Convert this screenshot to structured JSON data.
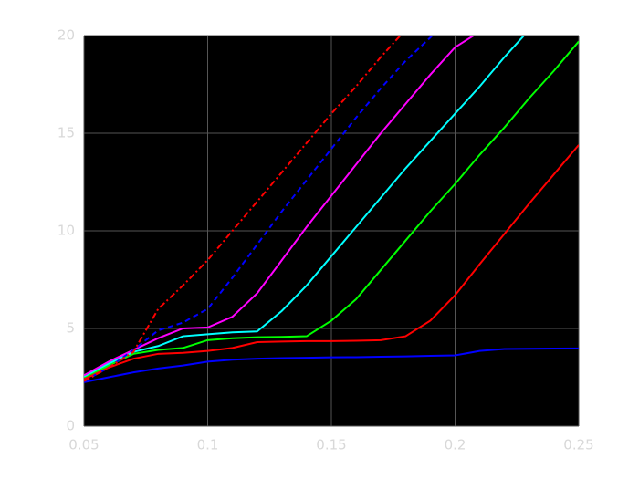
{
  "chart_data": {
    "type": "line",
    "x": [
      0.05,
      0.06,
      0.07,
      0.08,
      0.09,
      0.1,
      0.11,
      0.12,
      0.13,
      0.14,
      0.15,
      0.16,
      0.17,
      0.18,
      0.19,
      0.2,
      0.21,
      0.22,
      0.23,
      0.24,
      0.25
    ],
    "xlim": [
      0.05,
      0.25
    ],
    "xticks": [
      0.05,
      0.1,
      0.15,
      0.2,
      0.25
    ],
    "ylim": [
      0,
      20
    ],
    "yticks": [
      0,
      5,
      10,
      15,
      20
    ],
    "grid": true,
    "series": [
      {
        "color": "#0000ff",
        "dash": "solid",
        "values": [
          2.25,
          2.5,
          2.75,
          2.95,
          3.1,
          3.3,
          3.4,
          3.45,
          3.48,
          3.5,
          3.52,
          3.53,
          3.55,
          3.57,
          3.6,
          3.62,
          3.85,
          3.95,
          3.96,
          3.97,
          3.98
        ]
      },
      {
        "color": "#ff0000",
        "dash": "solid",
        "values": [
          2.4,
          3.0,
          3.45,
          3.7,
          3.75,
          3.85,
          4.0,
          4.3,
          4.33,
          4.35,
          4.35,
          4.37,
          4.4,
          4.6,
          5.4,
          6.7,
          8.3,
          9.85,
          11.4,
          12.9,
          14.4
        ]
      },
      {
        "color": "#00ff00",
        "dash": "solid",
        "values": [
          2.5,
          3.1,
          3.7,
          3.9,
          4.0,
          4.4,
          4.5,
          4.55,
          4.57,
          4.6,
          5.4,
          6.5,
          8.0,
          9.5,
          11.0,
          12.4,
          13.9,
          15.3,
          16.8,
          18.2,
          19.7
        ]
      },
      {
        "color": "#00ffff",
        "dash": "solid",
        "values": [
          2.55,
          3.2,
          3.8,
          4.1,
          4.6,
          4.7,
          4.8,
          4.85,
          5.9,
          7.2,
          8.7,
          10.2,
          11.7,
          13.2,
          14.6,
          16.0,
          17.4,
          18.9,
          20.3,
          null,
          null
        ]
      },
      {
        "color": "#ff00ff",
        "dash": "solid",
        "values": [
          2.6,
          3.3,
          3.9,
          4.5,
          5.0,
          5.05,
          5.6,
          6.8,
          8.5,
          10.2,
          11.8,
          13.4,
          15.0,
          16.5,
          18.0,
          19.4,
          20.2,
          null,
          null,
          null,
          null
        ]
      },
      {
        "color": "#0000ff",
        "dash": "dashed",
        "values": [
          2.3,
          3.0,
          3.9,
          4.9,
          5.3,
          6.0,
          7.6,
          9.3,
          11.0,
          12.6,
          14.2,
          15.8,
          17.3,
          18.7,
          19.9,
          21.2,
          null,
          null,
          null,
          null,
          null
        ]
      },
      {
        "color": "#ff0000",
        "dash": "dashdot",
        "values": [
          2.3,
          3.0,
          3.8,
          6.0,
          7.2,
          8.5,
          10.0,
          11.5,
          13.0,
          14.5,
          16.0,
          17.4,
          18.9,
          20.3,
          null,
          null,
          null,
          null,
          null,
          null,
          null
        ]
      }
    ]
  }
}
